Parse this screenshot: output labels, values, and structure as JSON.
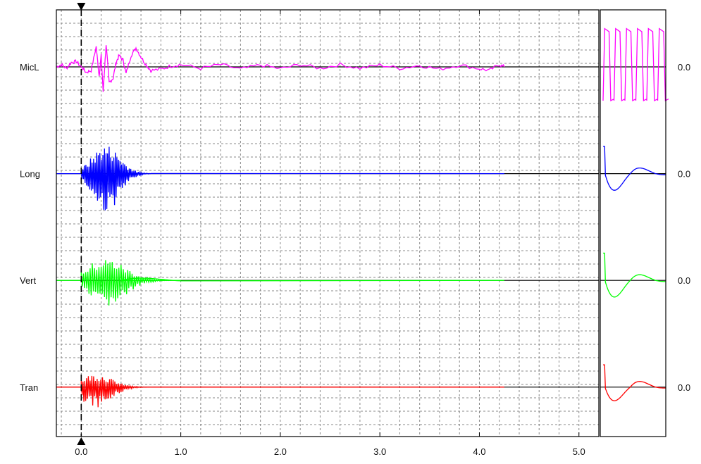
{
  "chart_data": {
    "type": "line",
    "x_axis": {
      "xlim": [
        -0.25,
        5.2
      ],
      "ticks": [
        0.0,
        1.0,
        2.0,
        3.0,
        4.0,
        5.0
      ],
      "tick_labels": [
        "0.0",
        "1.0",
        "2.0",
        "3.0",
        "4.0",
        "5.0"
      ],
      "grid": true,
      "trigger_marker": 0.0
    },
    "channels": [
      {
        "name": "MicL",
        "color": "#ff00ff",
        "baseline_label": "0.0",
        "record_end": 4.25,
        "waveform": [
          [
            -0.25,
            0.0
          ],
          [
            -0.2,
            0.05
          ],
          [
            -0.15,
            -0.03
          ],
          [
            -0.1,
            0.1
          ],
          [
            -0.05,
            0.12
          ],
          [
            0.0,
            0.0
          ],
          [
            0.05,
            -0.12
          ],
          [
            0.1,
            -0.08
          ],
          [
            0.15,
            0.45
          ],
          [
            0.18,
            -0.2
          ],
          [
            0.2,
            0.25
          ],
          [
            0.22,
            -0.55
          ],
          [
            0.25,
            0.5
          ],
          [
            0.28,
            -0.35
          ],
          [
            0.32,
            -0.25
          ],
          [
            0.35,
            0.1
          ],
          [
            0.38,
            0.25
          ],
          [
            0.42,
            0.15
          ],
          [
            0.45,
            -0.15
          ],
          [
            0.5,
            0.25
          ],
          [
            0.55,
            0.42
          ],
          [
            0.6,
            0.22
          ],
          [
            0.65,
            0.05
          ],
          [
            0.7,
            -0.08
          ],
          [
            0.8,
            -0.05
          ],
          [
            0.9,
            0.02
          ],
          [
            1.0,
            0.05
          ],
          [
            1.2,
            -0.03
          ],
          [
            1.4,
            0.05
          ],
          [
            1.6,
            -0.05
          ],
          [
            1.8,
            0.04
          ],
          [
            2.0,
            -0.04
          ],
          [
            2.2,
            0.05
          ],
          [
            2.4,
            -0.03
          ],
          [
            2.6,
            0.05
          ],
          [
            2.8,
            -0.03
          ],
          [
            3.0,
            0.04
          ],
          [
            3.2,
            -0.03
          ],
          [
            3.4,
            0.03
          ],
          [
            3.6,
            -0.05
          ],
          [
            3.8,
            0.04
          ],
          [
            4.0,
            -0.04
          ],
          [
            4.1,
            -0.08
          ],
          [
            4.2,
            0.05
          ],
          [
            4.25,
            0.0
          ]
        ],
        "ylim": [
          -1,
          1
        ],
        "zoom_panel": {
          "shape": "square wave",
          "cycles": 6,
          "ylim": [
            -1,
            1
          ],
          "high": 0.85,
          "low": -0.75
        }
      },
      {
        "name": "Long",
        "color": "#0000ff",
        "baseline_label": "0.0",
        "record_end": 4.25,
        "burst": {
          "start": 0.0,
          "peak_time": 0.25,
          "end": 0.7,
          "min": -0.85,
          "max": 0.65
        },
        "ylim": [
          -1,
          1
        ],
        "zoom_panel": {
          "shape": "damped response",
          "peak_max": 0.55,
          "peak_min": -0.85,
          "ylim": [
            -1,
            1
          ]
        }
      },
      {
        "name": "Vert",
        "color": "#00ff00",
        "baseline_label": "0.0",
        "record_end": 4.25,
        "burst": {
          "start": 0.0,
          "peak_time": 0.25,
          "end": 1.0,
          "min": -0.6,
          "max": 0.5
        },
        "ylim": [
          -1,
          1
        ],
        "zoom_panel": {
          "shape": "damped response",
          "peak_max": 0.55,
          "peak_min": -0.85,
          "ylim": [
            -1,
            1
          ]
        }
      },
      {
        "name": "Tran",
        "color": "#ff0000",
        "baseline_label": "0.0",
        "record_end": 4.25,
        "burst": {
          "start": 0.0,
          "peak_time": 0.15,
          "end": 0.8,
          "min": -0.45,
          "max": 0.3
        },
        "ylim": [
          -1,
          1
        ],
        "zoom_panel": {
          "shape": "damped response",
          "peak_max": 0.45,
          "peak_min": -0.85,
          "ylim": [
            -1,
            1
          ]
        }
      }
    ]
  }
}
